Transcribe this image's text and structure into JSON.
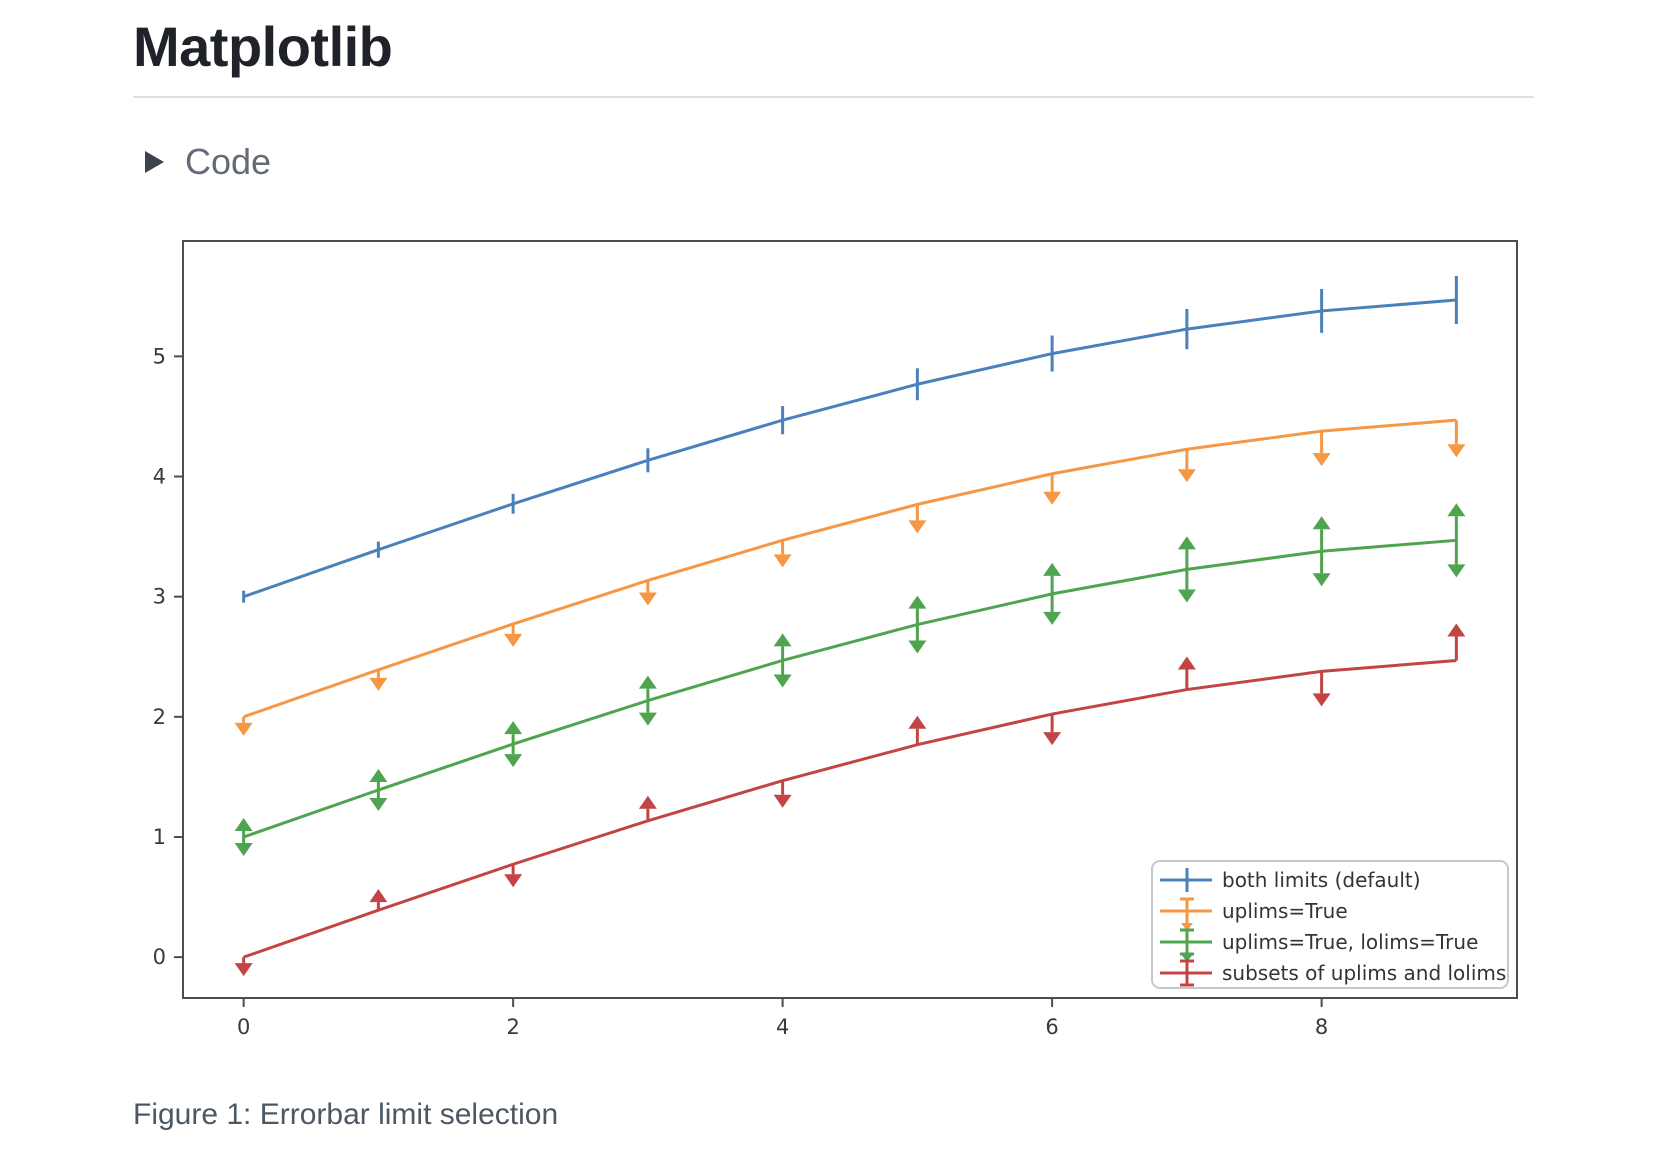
{
  "page": {
    "title": "Matplotlib",
    "code_toggle_label": "Code",
    "caption": "Figure 1: Errorbar limit selection"
  },
  "colors": {
    "title": "#1f2329",
    "muted_text": "#636c76",
    "caption_text": "#4c5864",
    "divider": "#dde1e6",
    "axis": "#4d4d4d",
    "tick_label": "#3a3a3a",
    "legend_border": "#c6c9cc",
    "series_blue": "#4a81bc",
    "series_orange": "#f59744",
    "series_green": "#4fa44f",
    "series_red": "#c24444"
  },
  "chart_data": {
    "type": "line",
    "title": "",
    "xlabel": "",
    "ylabel": "",
    "grid": false,
    "x": [
      0,
      1,
      2,
      3,
      4,
      5,
      6,
      7,
      8,
      9
    ],
    "yerr": [
      0.05,
      0.067,
      0.083,
      0.1,
      0.117,
      0.133,
      0.15,
      0.167,
      0.183,
      0.2
    ],
    "series": [
      {
        "name": "both limits (default)",
        "color": "#4a81bc",
        "limit_style": "none",
        "y": [
          3.0,
          3.391,
          3.773,
          4.135,
          4.469,
          4.768,
          5.023,
          5.227,
          5.378,
          5.469
        ]
      },
      {
        "name": "uplims=True",
        "color": "#f59744",
        "limit_style": "uplims",
        "y": [
          2.0,
          2.391,
          2.773,
          3.135,
          3.469,
          3.768,
          4.023,
          4.227,
          4.378,
          4.469
        ]
      },
      {
        "name": "uplims=True, lolims=True",
        "color": "#4fa44f",
        "limit_style": "uplims+lolims",
        "y": [
          1.0,
          1.391,
          1.773,
          2.135,
          2.469,
          2.768,
          3.023,
          3.227,
          3.378,
          3.469
        ]
      },
      {
        "name": "subsets of uplims and lolims",
        "color": "#c24444",
        "limit_style": "alternating",
        "arrows": [
          "down",
          "up",
          "down",
          "up",
          "down",
          "up",
          "down",
          "up",
          "down",
          "up"
        ],
        "y": [
          0.0,
          0.391,
          0.773,
          1.135,
          1.469,
          1.768,
          2.023,
          2.227,
          2.378,
          2.469
        ]
      }
    ],
    "xticks": [
      0,
      2,
      4,
      6,
      8
    ],
    "yticks": [
      0,
      1,
      2,
      3,
      4,
      5
    ],
    "xlim": [
      -0.45,
      9.45
    ],
    "ylim": [
      -0.34,
      5.96
    ],
    "legend": {
      "position": "lower right",
      "entries": [
        "both limits (default)",
        "uplims=True",
        "uplims=True, lolims=True",
        "subsets of uplims and lolims"
      ]
    }
  }
}
